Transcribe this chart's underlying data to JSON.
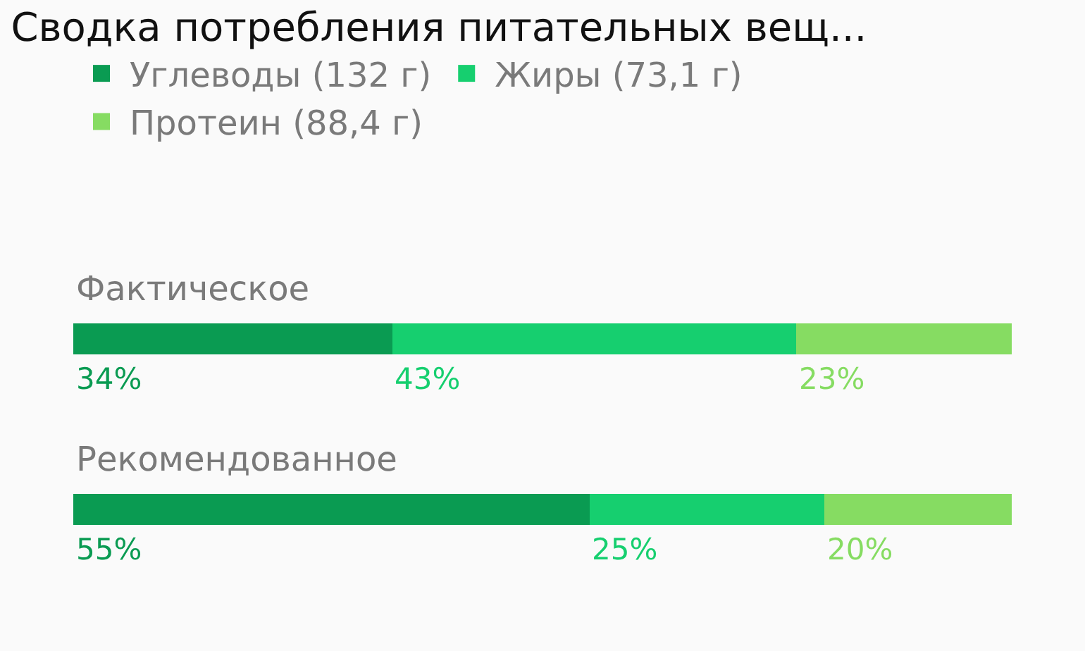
{
  "chart_data": {
    "type": "bar",
    "title": "Сводка потребления питательных вещ...",
    "orientation": "horizontal",
    "stacked": true,
    "legend": "top left",
    "categories": [
      "Фактическое",
      "Рекомендованное"
    ],
    "series": [
      {
        "name": "Углеводы (132 г)",
        "color": "#0a9b52",
        "values": [
          34,
          55
        ],
        "value_labels": [
          "34%",
          "55%"
        ]
      },
      {
        "name": "Жиры (73,1 г)",
        "color": "#16cf6f",
        "values": [
          43,
          25
        ],
        "value_labels": [
          "43%",
          "25%"
        ]
      },
      {
        "name": "Протеин (88,4 г)",
        "color": "#86dc62",
        "values": [
          23,
          20
        ],
        "value_labels": [
          "23%",
          "20%"
        ]
      }
    ]
  }
}
